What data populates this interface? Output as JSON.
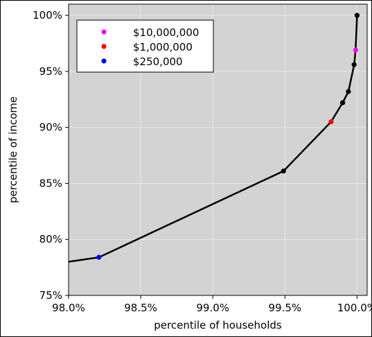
{
  "chart_data": {
    "type": "line",
    "xlabel": "percentile of households",
    "ylabel": "percentile of income",
    "xlim": [
      98.0,
      100.07
    ],
    "ylim": [
      75,
      101
    ],
    "x_ticks": [
      98.0,
      98.5,
      99.0,
      99.5,
      100.0
    ],
    "x_tick_labels": [
      "98.0%",
      "98.5%",
      "99.0%",
      "99.5%",
      "100.0%"
    ],
    "y_ticks": [
      75,
      80,
      85,
      90,
      95,
      100
    ],
    "y_tick_labels": [
      "75%",
      "80%",
      "85%",
      "90%",
      "95%",
      "100%"
    ],
    "grid": true,
    "background_color": "#d3d3d3",
    "grid_color": "#e8e8e8",
    "line_color": "#000000",
    "series": [
      {
        "x": [
          98.0,
          98.21,
          99.49,
          99.82,
          99.9,
          99.94,
          99.98,
          99.99,
          100.0
        ],
        "y": [
          78.0,
          78.4,
          86.1,
          90.5,
          92.2,
          93.2,
          95.6,
          96.9,
          100.0
        ]
      }
    ],
    "markers": [
      {
        "x": 98.21,
        "y": 78.4,
        "color": "#0000ff"
      },
      {
        "x": 99.49,
        "y": 86.1,
        "color": "#000000"
      },
      {
        "x": 99.82,
        "y": 90.5,
        "color": "#ff0000"
      },
      {
        "x": 99.9,
        "y": 92.2,
        "color": "#000000"
      },
      {
        "x": 99.94,
        "y": 93.2,
        "color": "#000000"
      },
      {
        "x": 99.98,
        "y": 95.6,
        "color": "#000000"
      },
      {
        "x": 99.99,
        "y": 96.9,
        "color": "#ff00ff"
      },
      {
        "x": 100.0,
        "y": 100.0,
        "color": "#000000"
      }
    ],
    "legend": {
      "placement": "top-left",
      "entries": [
        {
          "label": "$10,000,000",
          "color": "#ff00ff"
        },
        {
          "label": "$1,000,000",
          "color": "#ff0000"
        },
        {
          "label": "$250,000",
          "color": "#0000ff"
        }
      ]
    }
  }
}
